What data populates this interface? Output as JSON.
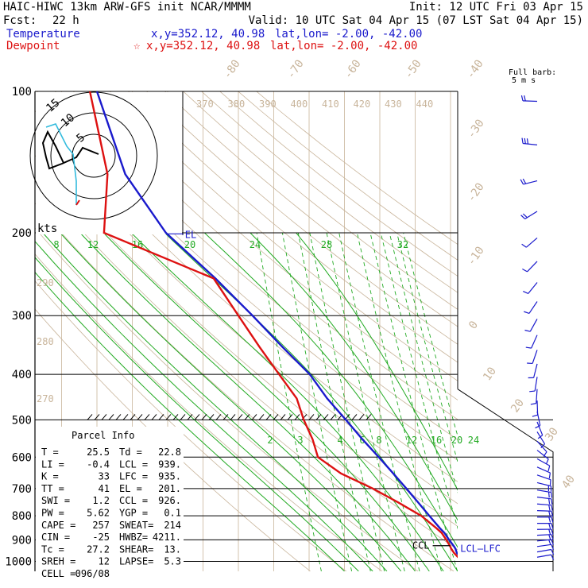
{
  "header": {
    "model_line": "HAIC-HIWC 13km ARW-GFS init   NCAR/MMMM",
    "init_line": "Init: 12 UTC Fri 03 Apr 15",
    "fcst_label": "Fcst:",
    "fcst_value": "22 h",
    "valid_line": "Valid: 10 UTC Sat 04 Apr 15 (07 LST Sat 04 Apr 15)",
    "temperature_label": "Temperature",
    "dewpoint_label": "Dewpoint",
    "temp_xy": "x,y=352.12, 40.98",
    "dew_xy": "x,y=352.12, 40.98",
    "temp_latlon": "lat,lon= -2.00, -42.00",
    "dew_latlon": "lat,lon= -2.00, -42.00",
    "dew_star": "☆",
    "barb_title_1": "Full barb:",
    "barb_title_2": "5 m s"
  },
  "colors": {
    "temperature": "#1a1acc",
    "dewpoint": "#dd1111",
    "dry_adiabat": "#c8b49a",
    "mixing_ratio": "#22aa22",
    "hodograph_u": "#000000",
    "hodograph_v": "#33bbdd"
  },
  "parcel_info": {
    "title": "Parcel Info",
    "rows": [
      [
        "T    =",
        "25.5",
        "Td =",
        "22.8"
      ],
      [
        "LI   =",
        "-0.4",
        "LCL =",
        "939."
      ],
      [
        "K    =",
        "33",
        "LFC =",
        "935."
      ],
      [
        "TT   =",
        "41",
        "EL  =",
        "201."
      ],
      [
        "SWI  =",
        "1.2",
        "CCL =",
        "926."
      ],
      [
        "PW   =",
        "5.62",
        "YGP =",
        "0.1"
      ],
      [
        "CAPE =",
        "257",
        "SWEAT=",
        "214"
      ],
      [
        "CIN  =",
        "-25",
        "HWBZ=",
        "4211."
      ],
      [
        "Tc   =",
        "27.2",
        "SHEAR=",
        "13."
      ],
      [
        "SREH =",
        "12",
        "LAPSE=",
        "5.3"
      ],
      [
        "CELL =",
        "096/08",
        "",
        ""
      ]
    ]
  },
  "level_labels": {
    "el": "EL",
    "ccl": "CCL",
    "lcl_lfc": "LCL—LFC"
  },
  "hodograph": {
    "unit_label": "kts",
    "ring_labels": [
      "5",
      "10",
      "15"
    ]
  },
  "chart_data": {
    "type": "line",
    "title": "",
    "ylabel": "",
    "xlabel": "",
    "y_axis_pressure_ticks": [
      100,
      200,
      300,
      400,
      500,
      600,
      700,
      800,
      900,
      1000
    ],
    "isotherm_labels": [
      -80,
      -70,
      -60,
      -50,
      -40,
      -30,
      -20,
      -10,
      0,
      10,
      20,
      30,
      40
    ],
    "theta_labels_top": [
      370,
      380,
      390,
      400,
      410,
      420,
      430,
      440
    ],
    "theta_labels_left": [
      290,
      280,
      270
    ],
    "mixing_ratio_labels_upper": [
      8,
      12,
      16,
      20,
      24,
      28,
      32
    ],
    "mixing_ratio_labels_lower": [
      2,
      3,
      4,
      6,
      8,
      12,
      16,
      20,
      24
    ],
    "series": [
      {
        "name": "Temperature",
        "pressure": [
          1000,
          985,
          960,
          940,
          930,
          900,
          870,
          850,
          800,
          750,
          700,
          650,
          600,
          550,
          500,
          450,
          400,
          350,
          300,
          250,
          200,
          150,
          100
        ],
        "temperature_c": [
          25.5,
          23.2,
          21.8,
          21.4,
          21.0,
          19.6,
          18.3,
          17.0,
          14.0,
          10.9,
          7.5,
          3.8,
          -0.3,
          -4.9,
          -9.6,
          -14.9,
          -19.8,
          -27.5,
          -36.0,
          -46.5,
          -60.5,
          -72.0,
          -80.0
        ]
      },
      {
        "name": "Dewpoint",
        "pressure": [
          1000,
          985,
          960,
          940,
          930,
          900,
          870,
          850,
          800,
          750,
          700,
          650,
          600,
          550,
          500,
          450,
          400,
          350,
          300,
          250,
          200,
          150,
          100
        ],
        "temperature_c": [
          22.8,
          22.4,
          21.0,
          20.2,
          19.9,
          18.8,
          17.5,
          16.0,
          11.7,
          5.3,
          -2.0,
          -11.0,
          -17.5,
          -19.0,
          -21.5,
          -23.5,
          -28.5,
          -34.0,
          -40.0,
          -47.0,
          -78.0,
          -77.0,
          -82.0
        ]
      }
    ],
    "wind_profile": {
      "pressure": [
        100,
        125,
        150,
        175,
        200,
        250,
        300,
        350,
        400,
        450,
        500,
        550,
        600,
        650,
        700,
        750,
        800,
        850,
        900,
        950,
        1000
      ],
      "speed_ms": [
        12,
        14,
        10,
        9,
        7,
        6,
        6,
        5,
        5,
        4,
        5,
        6,
        6,
        7,
        8,
        8,
        9,
        9,
        8,
        7,
        6
      ],
      "direction_deg": [
        270,
        280,
        260,
        240,
        230,
        220,
        210,
        200,
        190,
        180,
        160,
        140,
        120,
        110,
        100,
        95,
        90,
        90,
        85,
        80,
        80
      ]
    },
    "hodograph_u": [
      3,
      1,
      -1,
      -3,
      -4,
      -3,
      -1,
      1
    ],
    "hodograph_v": [
      -2,
      -3,
      -4,
      -2,
      1,
      4,
      7,
      10
    ]
  }
}
